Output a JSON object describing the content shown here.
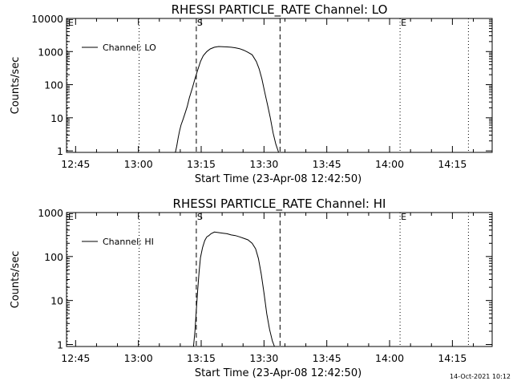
{
  "chart_data": [
    {
      "type": "line",
      "title": "RHESSI PARTICLE_RATE Channel: LO",
      "xlabel": "Start Time (23-Apr-08 12:42:50)",
      "ylabel": "Counts/sec",
      "y_scale": "log",
      "ylim": [
        0.9,
        10000
      ],
      "xlim": [
        "12:42:50",
        "14:24:30"
      ],
      "x_tick_labels": [
        "12:45",
        "13:00",
        "13:15",
        "13:30",
        "13:45",
        "14:00",
        "14:15"
      ],
      "y_tick_labels": [
        "1",
        "10",
        "100",
        "1000",
        "10000"
      ],
      "y_ticks": [
        1,
        10,
        100,
        1000,
        10000
      ],
      "legend": {
        "position": "top-left",
        "entries": [
          "Channel: LO"
        ]
      },
      "grid": false,
      "vertical_markers": [
        {
          "time": "12:42:50",
          "style": "dotted",
          "label": "E"
        },
        {
          "time": "13:00:10",
          "style": "dotted",
          "label": ""
        },
        {
          "time": "13:13:50",
          "style": "dashed",
          "label": "S"
        },
        {
          "time": "13:33:50",
          "style": "dashed",
          "label": ""
        },
        {
          "time": "14:02:30",
          "style": "dotted",
          "label": "E"
        },
        {
          "time": "14:18:50",
          "style": "dotted",
          "label": ""
        }
      ],
      "series": [
        {
          "x": [
            "13:08:50",
            "13:09:10",
            "13:09:30",
            "13:09:50",
            "13:10:10",
            "13:10:40",
            "13:11:10",
            "13:11:40",
            "13:12:10",
            "13:12:50",
            "13:13:30",
            "13:14:10",
            "13:14:50",
            "13:15:30",
            "13:16:20",
            "13:17:10",
            "13:18:10",
            "13:19:10",
            "13:20:10",
            "13:21:10",
            "13:22:10",
            "13:23:10",
            "13:24:10",
            "13:25:10",
            "13:26:10",
            "13:27:10",
            "13:28:10",
            "13:28:50",
            "13:29:30",
            "13:30:10",
            "13:30:50",
            "13:31:30",
            "13:32:10",
            "13:32:50",
            "13:33:30"
          ],
          "y": [
            0.9,
            1.4,
            2.5,
            4,
            6,
            9,
            14,
            22,
            40,
            75,
            150,
            280,
            500,
            750,
            1000,
            1200,
            1350,
            1420,
            1400,
            1380,
            1350,
            1300,
            1220,
            1100,
            950,
            800,
            500,
            300,
            150,
            60,
            25,
            10,
            3.5,
            1.6,
            0.9
          ]
        }
      ]
    },
    {
      "type": "line",
      "title": "RHESSI PARTICLE_RATE Channel: HI",
      "xlabel": "Start Time (23-Apr-08 12:42:50)",
      "ylabel": "Counts/sec",
      "y_scale": "log",
      "ylim": [
        0.9,
        1000
      ],
      "xlim": [
        "12:42:50",
        "14:24:30"
      ],
      "x_tick_labels": [
        "12:45",
        "13:00",
        "13:15",
        "13:30",
        "13:45",
        "14:00",
        "14:15"
      ],
      "y_tick_labels": [
        "1",
        "10",
        "100",
        "1000"
      ],
      "y_ticks": [
        1,
        10,
        100,
        1000
      ],
      "legend": {
        "position": "top-left",
        "entries": [
          "Channel: HI"
        ]
      },
      "grid": false,
      "vertical_markers": [
        {
          "time": "12:42:50",
          "style": "dotted",
          "label": "E"
        },
        {
          "time": "13:00:10",
          "style": "dotted",
          "label": ""
        },
        {
          "time": "13:13:50",
          "style": "dashed",
          "label": "S"
        },
        {
          "time": "13:33:50",
          "style": "dashed",
          "label": ""
        },
        {
          "time": "14:02:30",
          "style": "dotted",
          "label": "E"
        },
        {
          "time": "14:18:50",
          "style": "dotted",
          "label": ""
        }
      ],
      "series": [
        {
          "x": [
            "13:13:10",
            "13:13:30",
            "13:13:50",
            "13:14:10",
            "13:14:30",
            "13:14:50",
            "13:15:20",
            "13:15:50",
            "13:16:20",
            "13:16:50",
            "13:17:20",
            "13:18:10",
            "13:19:10",
            "13:20:10",
            "13:21:10",
            "13:22:10",
            "13:23:10",
            "13:24:10",
            "13:25:10",
            "13:26:10",
            "13:27:10",
            "13:28:00",
            "13:28:40",
            "13:29:20",
            "13:30:00",
            "13:30:40",
            "13:31:20",
            "13:32:00",
            "13:32:30"
          ],
          "y": [
            0.9,
            2,
            6,
            18,
            45,
            95,
            160,
            230,
            280,
            300,
            330,
            360,
            350,
            340,
            330,
            310,
            300,
            280,
            260,
            240,
            200,
            150,
            90,
            40,
            15,
            5,
            2.2,
            1.2,
            0.9
          ]
        }
      ]
    }
  ],
  "footer": {
    "timestamp": "14-Oct-2021 10:12"
  }
}
